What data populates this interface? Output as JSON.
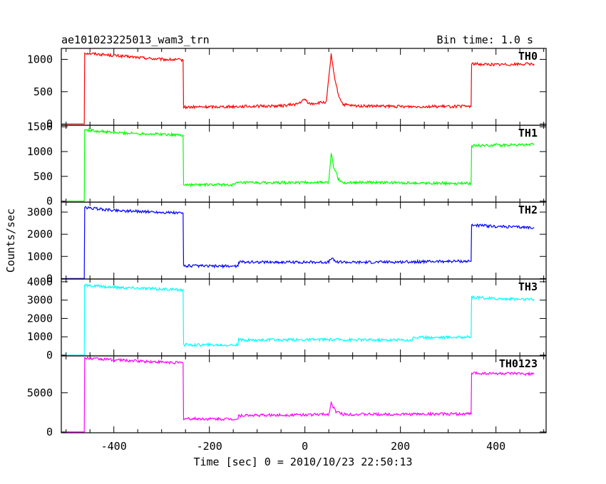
{
  "header": {
    "title": "ae101023225013_wam3_trn",
    "bin_time": "Bin time: 1.0 s"
  },
  "chart_data": {
    "type": "line",
    "xlabel": "Time [sec] 0 = 2010/10/23 22:50:13",
    "ylabel": "Counts/sec",
    "xlim": [
      -510,
      505
    ],
    "xticks": [
      -400,
      -200,
      0,
      200,
      400
    ],
    "grid": false,
    "series": [
      {
        "name": "TH0",
        "color": "#ff0000",
        "ylim": [
          -20,
          1170
        ],
        "yticks": [
          0,
          500,
          1000
        ],
        "points": [
          [
            -500,
            0
          ],
          [
            -462,
            0
          ],
          [
            -461,
            1100
          ],
          [
            -400,
            1060
          ],
          [
            -300,
            1000
          ],
          [
            -255,
            990
          ],
          [
            -254,
            260
          ],
          [
            -150,
            270
          ],
          [
            -50,
            280
          ],
          [
            -15,
            310
          ],
          [
            0,
            380
          ],
          [
            10,
            310
          ],
          [
            45,
            340
          ],
          [
            55,
            1080
          ],
          [
            60,
            800
          ],
          [
            70,
            450
          ],
          [
            80,
            300
          ],
          [
            100,
            280
          ],
          [
            200,
            270
          ],
          [
            300,
            270
          ],
          [
            348,
            275
          ],
          [
            349,
            930
          ],
          [
            400,
            920
          ],
          [
            480,
            930
          ]
        ]
      },
      {
        "name": "TH1",
        "color": "#00ff00",
        "ylim": [
          -20,
          1530
        ],
        "yticks": [
          0,
          500,
          1000,
          1500
        ],
        "points": [
          [
            -500,
            0
          ],
          [
            -462,
            0
          ],
          [
            -461,
            1440
          ],
          [
            -400,
            1380
          ],
          [
            -300,
            1350
          ],
          [
            -255,
            1330
          ],
          [
            -254,
            330
          ],
          [
            -150,
            330
          ],
          [
            -140,
            370
          ],
          [
            -50,
            370
          ],
          [
            50,
            380
          ],
          [
            55,
            980
          ],
          [
            60,
            700
          ],
          [
            70,
            450
          ],
          [
            80,
            370
          ],
          [
            100,
            380
          ],
          [
            200,
            370
          ],
          [
            300,
            360
          ],
          [
            348,
            360
          ],
          [
            349,
            1120
          ],
          [
            400,
            1130
          ],
          [
            480,
            1140
          ]
        ]
      },
      {
        "name": "TH2",
        "color": "#0000ff",
        "ylim": [
          -20,
          3450
        ],
        "yticks": [
          0,
          1000,
          2000,
          3000
        ],
        "points": [
          [
            -500,
            0
          ],
          [
            -462,
            0
          ],
          [
            -461,
            3200
          ],
          [
            -400,
            3080
          ],
          [
            -300,
            2990
          ],
          [
            -255,
            2950
          ],
          [
            -254,
            580
          ],
          [
            -200,
            560
          ],
          [
            -140,
            560
          ],
          [
            -139,
            750
          ],
          [
            -50,
            740
          ],
          [
            50,
            740
          ],
          [
            55,
            920
          ],
          [
            65,
            760
          ],
          [
            100,
            730
          ],
          [
            200,
            750
          ],
          [
            300,
            780
          ],
          [
            348,
            780
          ],
          [
            349,
            2420
          ],
          [
            400,
            2350
          ],
          [
            480,
            2300
          ]
        ]
      },
      {
        "name": "TH3",
        "color": "#00ffff",
        "ylim": [
          -40,
          4150
        ],
        "yticks": [
          0,
          1000,
          2000,
          3000,
          4000
        ],
        "points": [
          [
            -500,
            0
          ],
          [
            -462,
            0
          ],
          [
            -461,
            3800
          ],
          [
            -400,
            3700
          ],
          [
            -300,
            3600
          ],
          [
            -255,
            3560
          ],
          [
            -254,
            560
          ],
          [
            -200,
            560
          ],
          [
            -140,
            560
          ],
          [
            -139,
            820
          ],
          [
            -50,
            830
          ],
          [
            50,
            850
          ],
          [
            100,
            840
          ],
          [
            225,
            820
          ],
          [
            226,
            960
          ],
          [
            300,
            980
          ],
          [
            348,
            990
          ],
          [
            349,
            3150
          ],
          [
            400,
            3080
          ],
          [
            480,
            3030
          ]
        ]
      },
      {
        "name": "TH0123",
        "color": "#ff00ff",
        "ylim": [
          -100,
          9700
        ],
        "yticks": [
          0,
          5000
        ],
        "points": [
          [
            -500,
            0
          ],
          [
            -462,
            0
          ],
          [
            -461,
            9400
          ],
          [
            -400,
            9200
          ],
          [
            -300,
            8900
          ],
          [
            -255,
            8800
          ],
          [
            -254,
            1700
          ],
          [
            -200,
            1650
          ],
          [
            -140,
            1650
          ],
          [
            -139,
            2100
          ],
          [
            -50,
            2150
          ],
          [
            50,
            2250
          ],
          [
            55,
            3700
          ],
          [
            65,
            2600
          ],
          [
            80,
            2250
          ],
          [
            200,
            2250
          ],
          [
            300,
            2300
          ],
          [
            348,
            2300
          ],
          [
            349,
            7500
          ],
          [
            400,
            7450
          ],
          [
            480,
            7400
          ]
        ]
      }
    ]
  }
}
